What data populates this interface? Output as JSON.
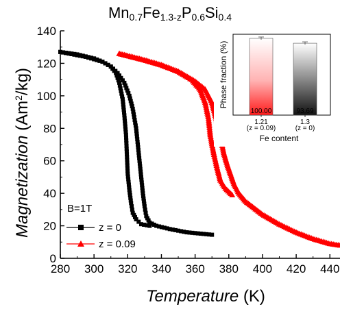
{
  "chart_data": [
    {
      "type": "line",
      "title": {
        "parts": [
          {
            "base": "Mn",
            "sub": "0.7"
          },
          {
            "base": "Fe",
            "sub": "1.3-z"
          },
          {
            "base": "P",
            "sub": "0.6"
          },
          {
            "base": "Si",
            "sub": "0.4"
          }
        ]
      },
      "xlabel": {
        "italic": "Temperature",
        "unit": " (K)"
      },
      "ylabel": {
        "italic": "Magnetization",
        "unit_pre": " (Am",
        "unit_sup": "2",
        "unit_post": "/kg)"
      },
      "xlim": [
        280,
        446
      ],
      "ylim": [
        0,
        140
      ],
      "xticks": [
        280,
        300,
        320,
        340,
        360,
        380,
        400,
        420,
        440
      ],
      "yticks": [
        0,
        20,
        40,
        60,
        80,
        100,
        120,
        140
      ],
      "annotation": "B=1T",
      "legend_position": "bottom-left",
      "series": [
        {
          "name": "z = 0",
          "color": "#000000",
          "marker": "square",
          "heating": [
            [
              280,
              127
            ],
            [
              290,
              125.5
            ],
            [
              300,
              123
            ],
            [
              305,
              121
            ],
            [
              310,
              118
            ],
            [
              314,
              114
            ],
            [
              318,
              108
            ],
            [
              321,
              100
            ],
            [
              323,
              92
            ],
            [
              325,
              80
            ],
            [
              326,
              70
            ],
            [
              327,
              60
            ],
            [
              328,
              50
            ],
            [
              329,
              40
            ],
            [
              330,
              32
            ],
            [
              331,
              26
            ],
            [
              333,
              22
            ],
            [
              337,
              20
            ],
            [
              345,
              18
            ],
            [
              355,
              16
            ],
            [
              370,
              14.5
            ]
          ],
          "cooling": [
            [
              280,
              127
            ],
            [
              295,
              124
            ],
            [
              305,
              121
            ],
            [
              310,
              118
            ],
            [
              313,
              114
            ],
            [
              315,
              108
            ],
            [
              317,
              98
            ],
            [
              318,
              88
            ],
            [
              319,
              76
            ],
            [
              319.5,
              64
            ],
            [
              320,
              52
            ],
            [
              321,
              42
            ],
            [
              322,
              34
            ],
            [
              323,
              28
            ],
            [
              325,
              24
            ],
            [
              328,
              21
            ],
            [
              333,
              20
            ]
          ]
        },
        {
          "name": "z = 0.09",
          "color": "#ff0000",
          "marker": "triangle",
          "heating": [
            [
              315,
              126
            ],
            [
              330,
              122
            ],
            [
              340,
              119
            ],
            [
              350,
              115
            ],
            [
              360,
              109
            ],
            [
              366,
              104
            ],
            [
              370,
              96
            ],
            [
              372,
              88
            ],
            [
              375,
              75
            ],
            [
              377,
              65
            ],
            [
              379,
              58
            ],
            [
              381,
              52
            ],
            [
              383,
              46
            ],
            [
              386,
              40
            ],
            [
              390,
              35
            ],
            [
              400,
              27
            ],
            [
              410,
              21
            ],
            [
              420,
              16
            ],
            [
              430,
              12
            ],
            [
              440,
              9
            ],
            [
              446,
              8
            ]
          ],
          "cooling": [
            [
              315,
              126
            ],
            [
              330,
              122
            ],
            [
              340,
              119
            ],
            [
              350,
              115
            ],
            [
              358,
              110
            ],
            [
              363,
              104
            ],
            [
              366,
              96
            ],
            [
              368,
              86
            ],
            [
              369,
              76
            ],
            [
              371,
              65
            ],
            [
              373,
              56
            ],
            [
              375,
              48
            ],
            [
              378,
              43
            ],
            [
              382,
              39
            ]
          ]
        }
      ]
    },
    {
      "type": "bar",
      "xlabel": "Fe content",
      "ylabel": "Phase fraction (%)",
      "categories": [
        {
          "value": "1.21",
          "note": "(z = 0.09)"
        },
        {
          "value": "1.3",
          "note": "(z = 0)"
        }
      ],
      "values": [
        100.0,
        93.69
      ],
      "value_labels": [
        "100.00",
        "93.69"
      ],
      "ylim": [
        0,
        100
      ],
      "colors": [
        "#ff0000",
        "#000000"
      ]
    }
  ]
}
